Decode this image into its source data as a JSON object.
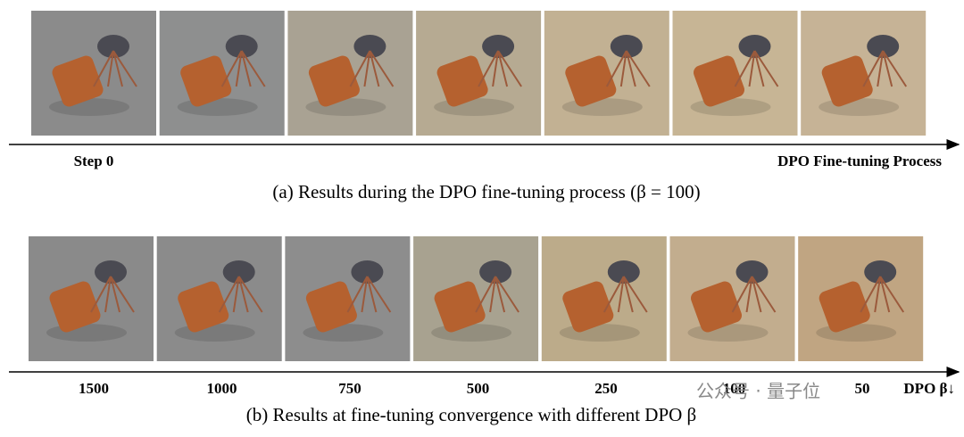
{
  "figure": {
    "row_a": {
      "start_label": "Step 0",
      "end_label": "DPO Fine-tuning Process",
      "caption": "(a)  Results during the DPO fine-tuning process (β = 100)"
    },
    "row_b": {
      "labels": [
        "1500",
        "1000",
        "750",
        "500",
        "250",
        "100",
        "50"
      ],
      "end_label": "DPO β↓",
      "caption": "(b)  Results at fine-tuning convergence with different DPO β"
    },
    "watermark": "公众号 · 量子位"
  }
}
